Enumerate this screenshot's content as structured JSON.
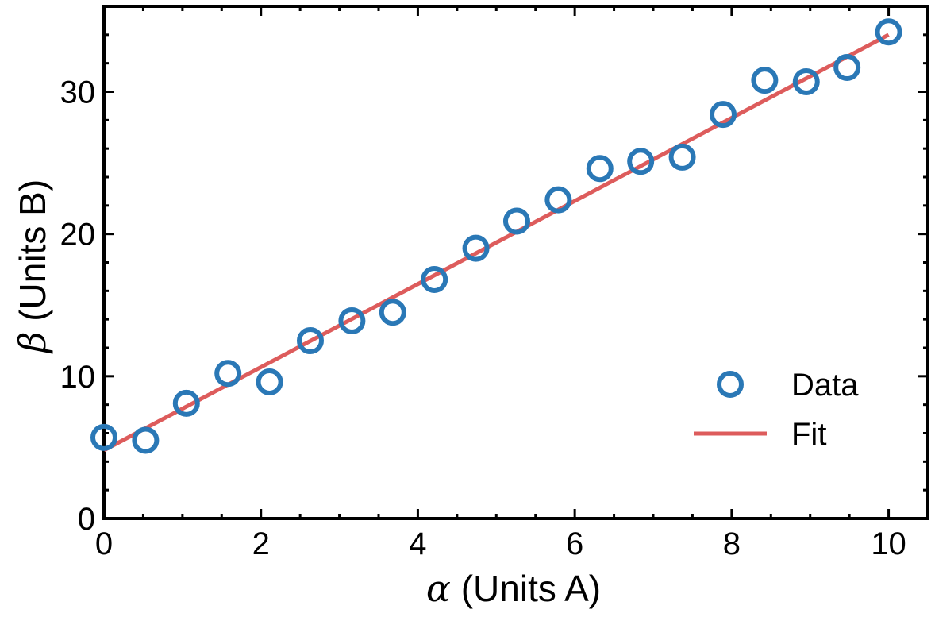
{
  "chart_data": {
    "type": "scatter",
    "xlabel_symbol": "α",
    "xlabel_text": " (Units A)",
    "ylabel_symbol": "β",
    "ylabel_text": " (Units B)",
    "xlim": [
      0,
      10.5
    ],
    "ylim": [
      0,
      36
    ],
    "x_ticks": [
      0,
      2,
      4,
      6,
      8,
      10
    ],
    "y_ticks": [
      0,
      10,
      20,
      30
    ],
    "x_tick_labels": [
      "0",
      "2",
      "4",
      "6",
      "8",
      "10"
    ],
    "y_tick_labels": [
      "0",
      "10",
      "20",
      "30"
    ],
    "grid": false,
    "legend_position": "lower-right",
    "series": [
      {
        "name": "Data",
        "kind": "scatter",
        "marker": "open-circle",
        "color": "#2a78b6",
        "x": [
          0.0,
          0.53,
          1.05,
          1.58,
          2.11,
          2.63,
          3.16,
          3.68,
          4.21,
          4.74,
          5.26,
          5.79,
          6.32,
          6.84,
          7.37,
          7.89,
          8.42,
          8.95,
          9.47,
          10.0
        ],
        "y": [
          5.7,
          5.5,
          8.1,
          10.2,
          9.6,
          12.5,
          13.9,
          14.5,
          16.8,
          19.0,
          20.9,
          22.4,
          24.6,
          25.1,
          25.4,
          28.4,
          30.8,
          30.7,
          31.7,
          34.2
        ]
      },
      {
        "name": "Fit",
        "kind": "line",
        "color": "#dd5c5c",
        "x": [
          0,
          10
        ],
        "y": [
          4.8,
          34.0
        ]
      }
    ]
  }
}
